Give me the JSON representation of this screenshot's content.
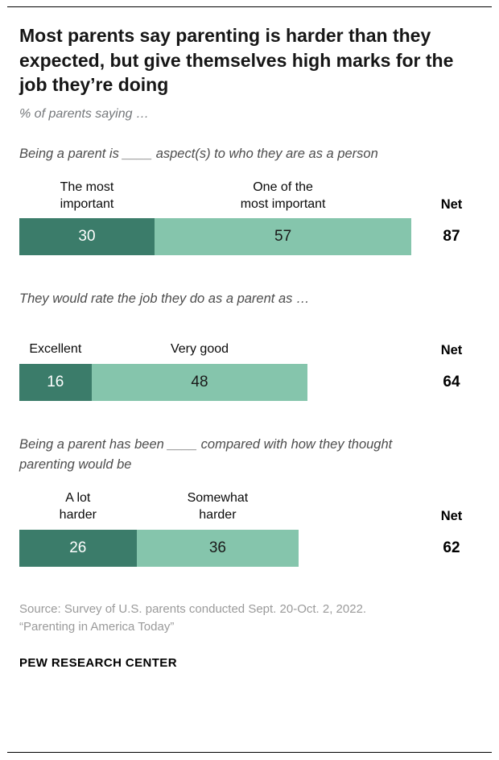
{
  "header": {
    "title": "Most parents say parenting is harder than they expected, but give themselves high marks for the job they’re doing",
    "subtitle": "% of parents saying …"
  },
  "colors": {
    "dark": "#3b7c6a",
    "light": "#85c5ac"
  },
  "charts": [
    {
      "question": "Being a parent is ____ aspect(s) to who they are as a person",
      "net_label": "Net",
      "net": 87,
      "segments": [
        {
          "label": "The most\nimportant",
          "value": 30
        },
        {
          "label": "One of the\nmost important",
          "value": 57
        }
      ]
    },
    {
      "question": "They would rate the job they do as a parent as …",
      "net_label": "Net",
      "net": 64,
      "segments": [
        {
          "label": "Excellent",
          "value": 16
        },
        {
          "label": "Very good",
          "value": 48
        }
      ]
    },
    {
      "question": "Being a parent has been ____ compared with how they thought parenting would be",
      "net_label": "Net",
      "net": 62,
      "segments": [
        {
          "label": "A lot\nharder",
          "value": 26
        },
        {
          "label": "Somewhat\nharder",
          "value": 36
        }
      ]
    }
  ],
  "footer": {
    "source_line1": "Source: Survey of U.S. parents conducted Sept. 20-Oct. 2, 2022.",
    "source_line2": "“Parenting in America Today”",
    "brand": "PEW RESEARCH CENTER"
  },
  "chart_data": {
    "type": "bar",
    "orientation": "horizontal",
    "stacked": true,
    "title": "Most parents say parenting is harder than they expected, but give themselves high marks for the job they’re doing",
    "subtitle": "% of parents saying …",
    "xlim": [
      0,
      100
    ],
    "grid": false,
    "legend_position": "above-bars",
    "colors": [
      "#3b7c6a",
      "#85c5ac"
    ],
    "charts": [
      {
        "question": "Being a parent is ____ aspect(s) to who they are as a person",
        "categories": [
          "The most important",
          "One of the most important"
        ],
        "values": [
          30,
          57
        ],
        "net": 87
      },
      {
        "question": "They would rate the job they do as a parent as …",
        "categories": [
          "Excellent",
          "Very good"
        ],
        "values": [
          16,
          48
        ],
        "net": 64
      },
      {
        "question": "Being a parent has been ____ compared with how they thought parenting would be",
        "categories": [
          "A lot harder",
          "Somewhat harder"
        ],
        "values": [
          26,
          36
        ],
        "net": 62
      }
    ]
  }
}
